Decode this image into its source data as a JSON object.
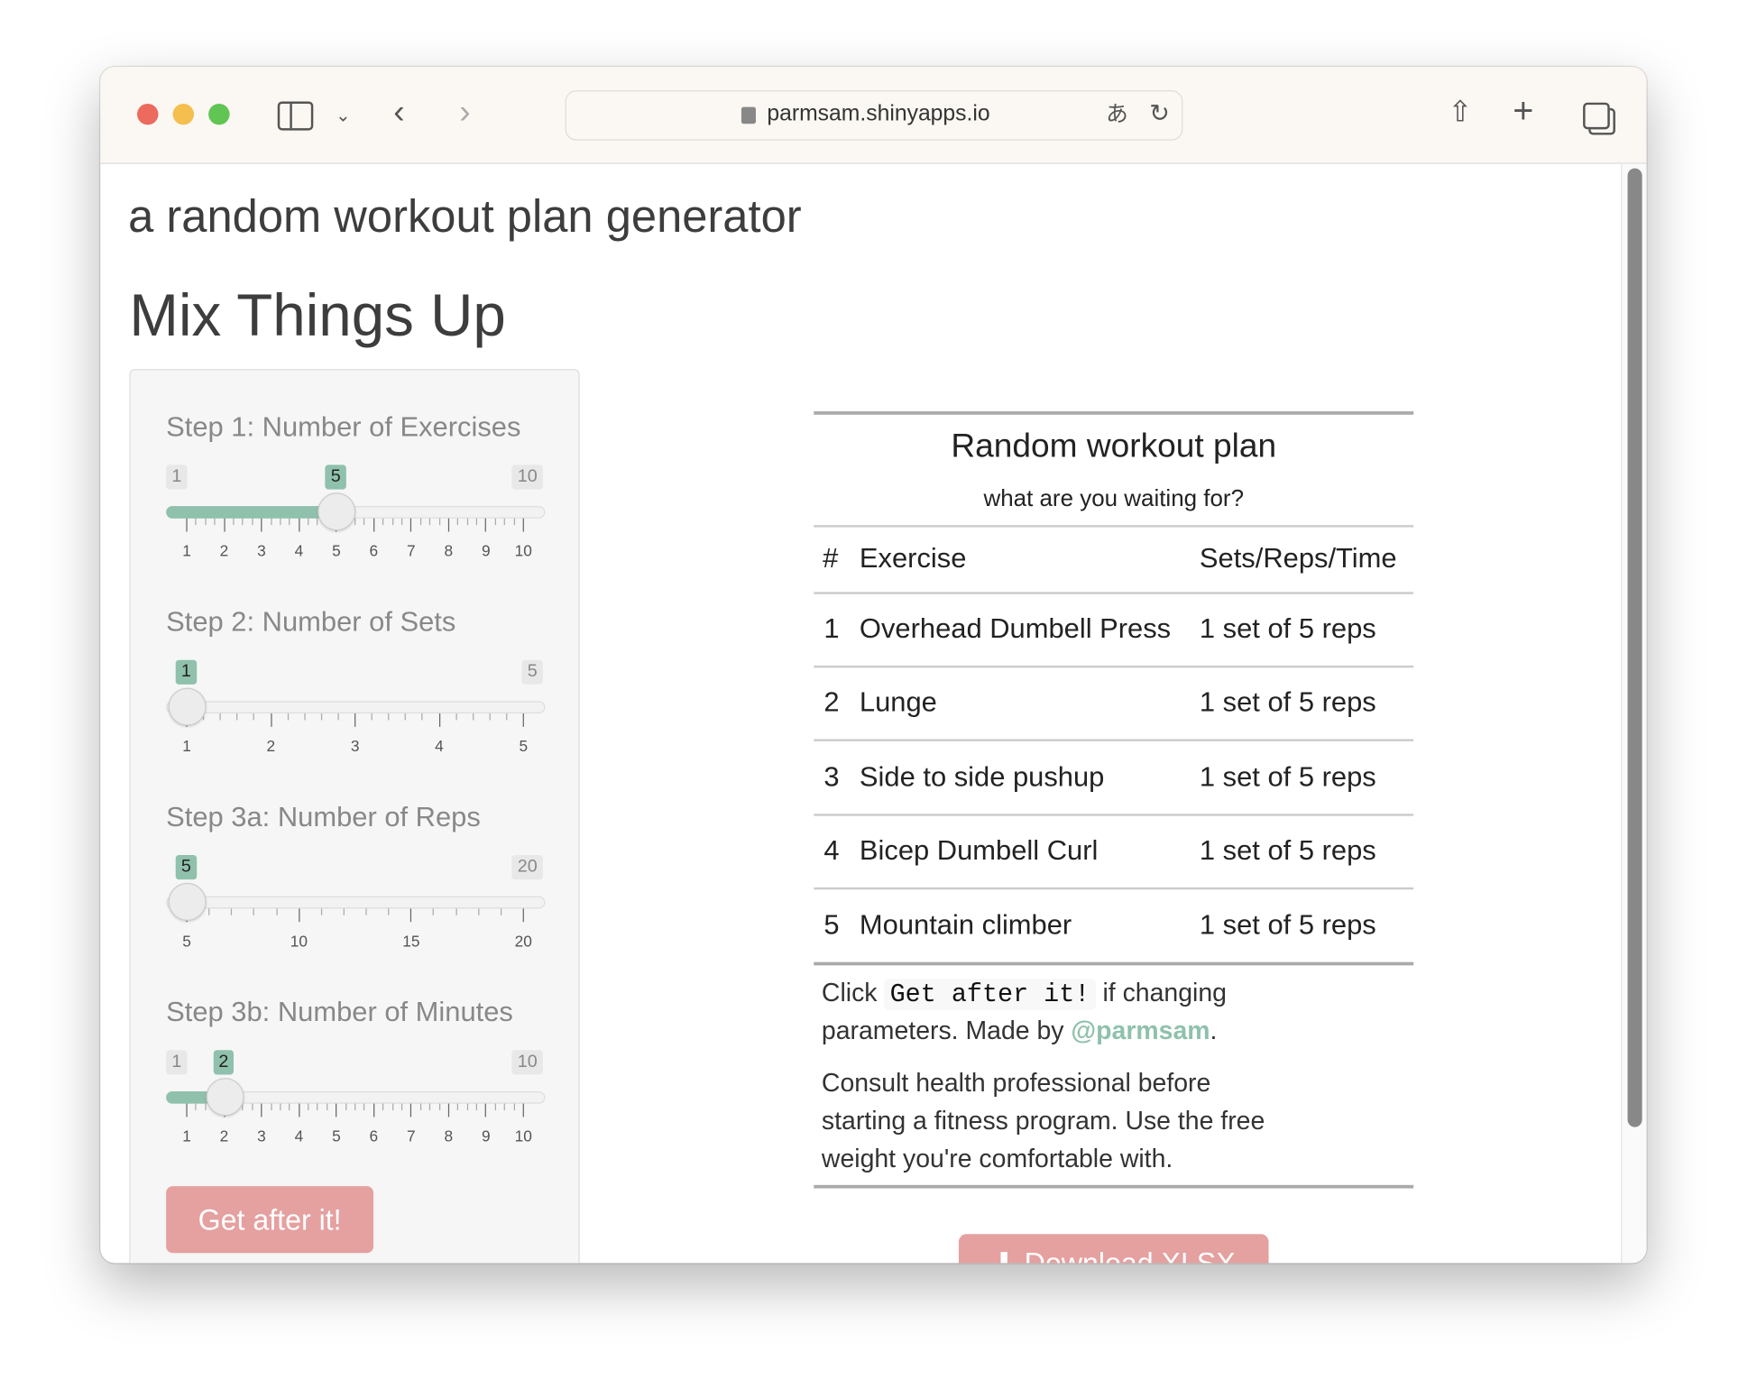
{
  "browser": {
    "url": "parmsam.shinyapps.io",
    "colors": {
      "close": "#ec6a5e",
      "minimize": "#f4bf4f",
      "zoom": "#61c554"
    }
  },
  "page": {
    "app_title": "a random workout plan generator",
    "heading": "Mix Things Up"
  },
  "sidebar": {
    "sliders": [
      {
        "label": "Step 1: Number of Exercises",
        "min": 1,
        "max": 10,
        "value": 5,
        "ticks": [
          "1",
          "2",
          "3",
          "4",
          "5",
          "6",
          "7",
          "8",
          "9",
          "10"
        ]
      },
      {
        "label": "Step 2: Number of Sets",
        "min": 1,
        "max": 5,
        "value": 1,
        "ticks": [
          "1",
          "2",
          "3",
          "4",
          "5"
        ]
      },
      {
        "label": "Step 3a: Number of Reps",
        "min": 5,
        "max": 20,
        "value": 5,
        "ticks": [
          "5",
          "10",
          "15",
          "20"
        ]
      },
      {
        "label": "Step 3b: Number of Minutes",
        "min": 1,
        "max": 10,
        "value": 2,
        "ticks": [
          "1",
          "2",
          "3",
          "4",
          "5",
          "6",
          "7",
          "8",
          "9",
          "10"
        ]
      }
    ],
    "submit_label": "Get after it!"
  },
  "plan": {
    "title": "Random workout plan",
    "subtitle": "what are you waiting for?",
    "columns": [
      "#",
      "Exercise",
      "Sets/Reps/Time"
    ],
    "rows": [
      [
        "1",
        "Overhead Dumbell Press",
        "1 set of 5 reps"
      ],
      [
        "2",
        "Lunge",
        "1 set of 5 reps"
      ],
      [
        "3",
        "Side to side pushup",
        "1 set of 5 reps"
      ],
      [
        "4",
        "Bicep Dumbell Curl",
        "1 set of 5 reps"
      ],
      [
        "5",
        "Mountain climber",
        "1 set of 5 reps"
      ]
    ],
    "footer": {
      "click": "Click",
      "code": "Get after it!",
      "if_changing": "if changing",
      "made_by": "parameters. Made by",
      "author": "@parmsam",
      "period": ".",
      "disclaimer_1": "Consult health professional before",
      "disclaimer_2": "starting a fitness program. Use the free",
      "disclaimer_3": "weight you're comfortable with."
    },
    "download_label": "Download XLSX"
  },
  "colors": {
    "accent": "#8fc1ad",
    "button": "#e5a0a0"
  }
}
